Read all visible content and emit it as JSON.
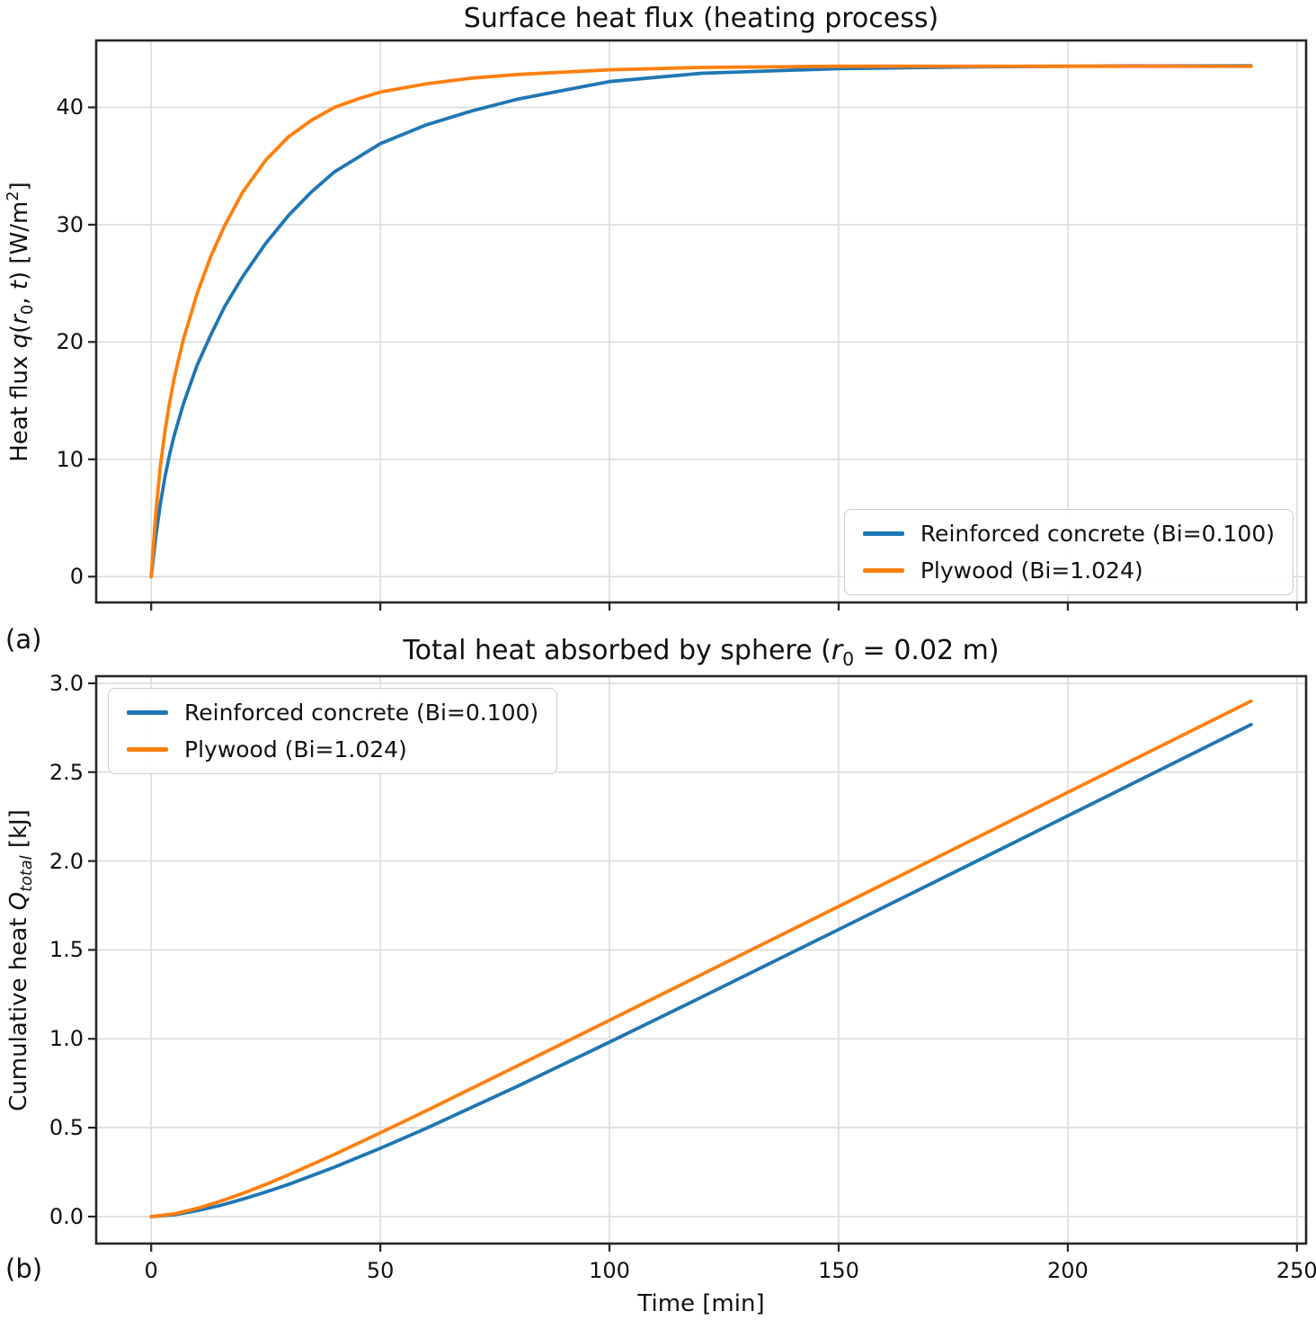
{
  "figure": {
    "background": "#ffffff"
  },
  "panels": {
    "a": "(a)",
    "b": "(b)"
  },
  "colors": {
    "grid": "#dcdcdc",
    "spine": "#262626",
    "text": "#111111"
  },
  "chart_data": [
    {
      "id": "surface-heat-flux",
      "type": "line",
      "title": "Surface heat flux (heating process)",
      "title_segments": [
        {
          "t": "Surface heat flux (heating process)",
          "s": "n"
        }
      ],
      "ylabel": "Heat flux q(r0, t) [W/m^2]",
      "ylabel_segments": [
        {
          "t": "Heat flux ",
          "s": "n"
        },
        {
          "t": "q",
          "s": "i"
        },
        {
          "t": "(",
          "s": "n"
        },
        {
          "t": "r",
          "s": "i"
        },
        {
          "t": "0",
          "s": "sub"
        },
        {
          "t": ", ",
          "s": "n"
        },
        {
          "t": "t",
          "s": "i"
        },
        {
          "t": ") [W/m",
          "s": "n"
        },
        {
          "t": "2",
          "s": "sup"
        },
        {
          "t": "]",
          "s": "n"
        }
      ],
      "xlabel": "",
      "xlim": [
        -12,
        252
      ],
      "ylim": [
        -2.2,
        45.7
      ],
      "xticks": [
        0,
        50,
        100,
        150,
        200,
        250
      ],
      "xtick_labels": [
        "0",
        "50",
        "100",
        "150",
        "200",
        "250"
      ],
      "show_xtick_labels": false,
      "yticks": [
        0,
        10,
        20,
        30,
        40
      ],
      "ytick_labels": [
        "0",
        "10",
        "20",
        "30",
        "40"
      ],
      "grid": true,
      "legend_position": "lower right",
      "x": [
        0,
        1,
        2,
        3,
        4,
        5,
        7,
        10,
        13,
        16,
        20,
        25,
        30,
        35,
        40,
        45,
        50,
        60,
        70,
        80,
        100,
        120,
        150,
        180,
        210,
        240
      ],
      "series": [
        {
          "name": "Reinforced concrete (Bi=0.100)",
          "color": "#1f77b4",
          "values": [
            0,
            3.4,
            6.2,
            8.5,
            10.4,
            12.0,
            14.7,
            18.0,
            20.6,
            23.0,
            25.6,
            28.4,
            30.8,
            32.8,
            34.5,
            35.7,
            36.9,
            38.5,
            39.7,
            40.7,
            42.2,
            42.9,
            43.3,
            43.45,
            43.52,
            43.55
          ]
        },
        {
          "name": "Plywood (Bi=1.024)",
          "color": "#ff7f0e",
          "values": [
            0,
            5.4,
            9.4,
            12.4,
            14.8,
            16.9,
            20.2,
            24.1,
            27.3,
            29.9,
            32.8,
            35.5,
            37.5,
            38.9,
            40.0,
            40.7,
            41.3,
            42.0,
            42.5,
            42.8,
            43.2,
            43.4,
            43.5,
            43.5,
            43.5,
            43.5
          ]
        }
      ]
    },
    {
      "id": "total-heat-absorbed",
      "type": "line",
      "title": "Total heat absorbed by sphere (r0 = 0.02 m)",
      "title_segments": [
        {
          "t": "Total heat absorbed by sphere (",
          "s": "n"
        },
        {
          "t": "r",
          "s": "i"
        },
        {
          "t": "0",
          "s": "sub"
        },
        {
          "t": " = 0.02 m)",
          "s": "n"
        }
      ],
      "ylabel": "Cumulative heat Q_total [kJ]",
      "ylabel_segments": [
        {
          "t": "Cumulative heat ",
          "s": "n"
        },
        {
          "t": "Q",
          "s": "i"
        },
        {
          "t": "total",
          "s": "subi"
        },
        {
          "t": " [kJ]",
          "s": "n"
        }
      ],
      "xlabel": "Time [min]",
      "xlabel_segments": [
        {
          "t": "Time [min]",
          "s": "n"
        }
      ],
      "xlim": [
        -12,
        252
      ],
      "ylim": [
        -0.152,
        3.04
      ],
      "xticks": [
        0,
        50,
        100,
        150,
        200,
        250
      ],
      "xtick_labels": [
        "0",
        "50",
        "100",
        "150",
        "200",
        "250"
      ],
      "show_xtick_labels": true,
      "yticks": [
        0.0,
        0.5,
        1.0,
        1.5,
        2.0,
        2.5,
        3.0
      ],
      "ytick_labels": [
        "0.0",
        "0.5",
        "1.0",
        "1.5",
        "2.0",
        "2.5",
        "3.0"
      ],
      "grid": true,
      "legend_position": "upper left",
      "x": [
        0,
        5,
        10,
        15,
        20,
        25,
        30,
        40,
        50,
        60,
        80,
        100,
        120,
        150,
        180,
        210,
        240
      ],
      "series": [
        {
          "name": "Reinforced concrete (Bi=0.100)",
          "color": "#1f77b4",
          "values": [
            0,
            0.01,
            0.033,
            0.062,
            0.098,
            0.138,
            0.181,
            0.278,
            0.384,
            0.496,
            0.734,
            0.981,
            1.233,
            1.615,
            1.998,
            2.383,
            2.768
          ]
        },
        {
          "name": "Plywood (Bi=1.024)",
          "color": "#ff7f0e",
          "values": [
            0,
            0.015,
            0.046,
            0.085,
            0.131,
            0.181,
            0.235,
            0.35,
            0.471,
            0.595,
            0.849,
            1.104,
            1.36,
            1.745,
            2.13,
            2.515,
            2.9
          ]
        }
      ]
    }
  ]
}
